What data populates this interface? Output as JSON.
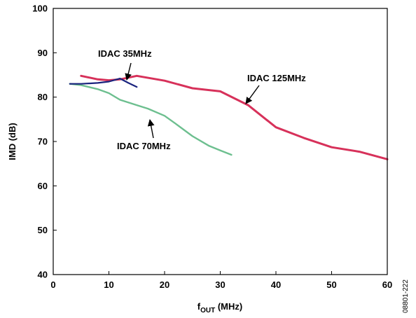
{
  "chart_data": {
    "type": "line",
    "xlabel_main": "f",
    "xlabel_sub": "OUT",
    "xlabel_rest": " (MHz)",
    "ylabel": "IMD (dB)",
    "xlim": [
      0,
      60
    ],
    "ylim": [
      40,
      100
    ],
    "x_ticks": [
      "0",
      "10",
      "20",
      "30",
      "40",
      "50",
      "60"
    ],
    "y_ticks": [
      "40",
      "50",
      "60",
      "70",
      "80",
      "90",
      "100"
    ],
    "grid": false,
    "series": [
      {
        "name": "IDAC 35MHz",
        "color": "#1a237e",
        "x": [
          3,
          5,
          8,
          10,
          12,
          13.5,
          15
        ],
        "y": [
          83.0,
          83.0,
          83.2,
          83.5,
          84.2,
          83.2,
          82.3
        ]
      },
      {
        "name": "IDAC 125MHz",
        "color": "#d7315a",
        "x": [
          5,
          8,
          10,
          12,
          15,
          20,
          25,
          30,
          35,
          40,
          45,
          50,
          55,
          60
        ],
        "y": [
          84.8,
          84.0,
          83.8,
          84.0,
          84.8,
          83.7,
          82.0,
          81.3,
          78.2,
          73.2,
          70.8,
          68.7,
          67.7,
          66.0
        ]
      },
      {
        "name": "IDAC 70MHz",
        "color": "#6dbf8f",
        "x": [
          3,
          5,
          8,
          10,
          12,
          15,
          17,
          20,
          22,
          25,
          28,
          30,
          32
        ],
        "y": [
          83.0,
          82.7,
          81.8,
          80.9,
          79.4,
          78.2,
          77.4,
          75.8,
          74.0,
          71.2,
          69.0,
          68.0,
          67.0
        ]
      }
    ],
    "annotations": [
      {
        "label": "IDAC 35MHz"
      },
      {
        "label": "IDAC 125MHz"
      },
      {
        "label": "IDAC 70MHz"
      }
    ],
    "figure_id": "08801-222"
  }
}
